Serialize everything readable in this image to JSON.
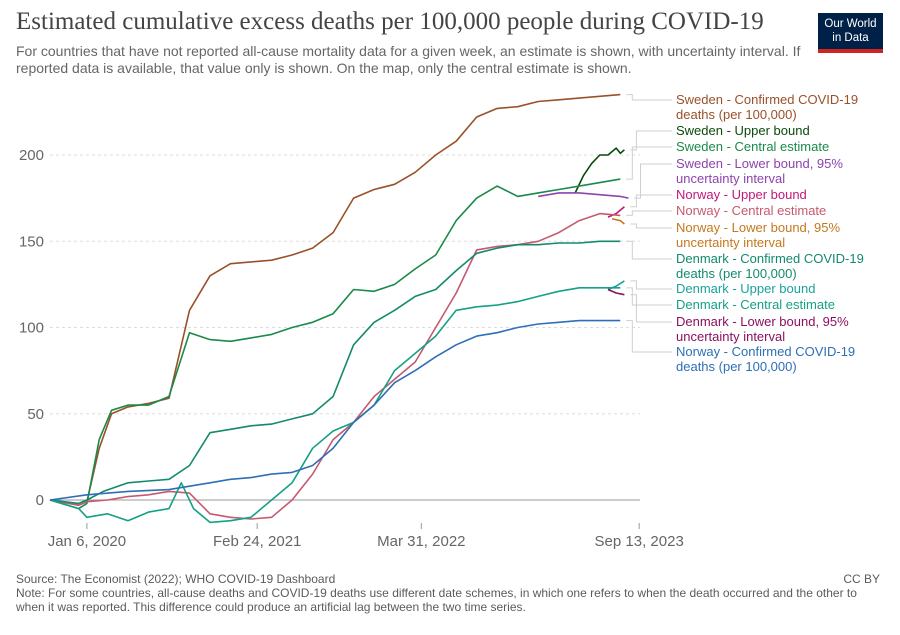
{
  "header": {
    "title": "Estimated cumulative excess deaths per 100,000 people during COVID-19",
    "subtitle": "For countries that have not reported all-cause mortality data for a given week, an estimate is shown, with uncertainty interval. If reported data is available, that value only is shown. On the map, only the central estimate is shown.",
    "logo_line1": "Our World",
    "logo_line2": "in Data"
  },
  "footer": {
    "source": "Source: The Economist (2022); WHO COVID-19 Dashboard",
    "note": "Note: For some countries, all-cause deaths and COVID-19 deaths use different date schemes, in which one refers to when the death occurred and the other to when it was reported. This difference could produce an artificial lag between the two time series.",
    "license": "CC BY"
  },
  "chart_data": {
    "type": "line",
    "title": "Estimated cumulative excess deaths per 100,000 people during COVID-19",
    "ylabel": "",
    "xlabel": "",
    "ylim": [
      -15,
      235
    ],
    "yticks": [
      0,
      50,
      100,
      150,
      200
    ],
    "x_range_days": [
      0,
      1348
    ],
    "xticks": [
      {
        "label": "Jan 6, 2020",
        "day": 0
      },
      {
        "label": "Feb 24, 2021",
        "day": 415
      },
      {
        "label": "Mar 31, 2022",
        "day": 815
      },
      {
        "label": "Sep 13, 2023",
        "day": 1346
      }
    ],
    "series": [
      {
        "name": "Sweden - Confirmed COVID-19 deaths (per 100,000)",
        "color": "#9a5129",
        "points": [
          [
            -90,
            0
          ],
          [
            -20,
            -3
          ],
          [
            0,
            -1
          ],
          [
            30,
            30
          ],
          [
            60,
            50
          ],
          [
            100,
            54
          ],
          [
            150,
            56
          ],
          [
            200,
            59
          ],
          [
            250,
            110
          ],
          [
            300,
            130
          ],
          [
            350,
            137
          ],
          [
            400,
            138
          ],
          [
            450,
            139
          ],
          [
            500,
            142
          ],
          [
            550,
            146
          ],
          [
            600,
            155
          ],
          [
            650,
            175
          ],
          [
            700,
            180
          ],
          [
            750,
            183
          ],
          [
            800,
            190
          ],
          [
            850,
            200
          ],
          [
            900,
            208
          ],
          [
            950,
            222
          ],
          [
            1000,
            227
          ],
          [
            1050,
            228
          ],
          [
            1100,
            231
          ],
          [
            1150,
            232
          ],
          [
            1200,
            233
          ],
          [
            1250,
            234
          ],
          [
            1300,
            235
          ]
        ]
      },
      {
        "name": "Sweden - Upper bound",
        "color": "#0a4a0a",
        "points": [
          [
            1190,
            178
          ],
          [
            1210,
            188
          ],
          [
            1230,
            195
          ],
          [
            1250,
            200
          ],
          [
            1270,
            200
          ],
          [
            1290,
            204
          ],
          [
            1300,
            201
          ],
          [
            1310,
            203
          ]
        ]
      },
      {
        "name": "Sweden - Central estimate",
        "color": "#1a8a4a",
        "points": [
          [
            -90,
            0
          ],
          [
            -20,
            -5
          ],
          [
            0,
            -2
          ],
          [
            30,
            35
          ],
          [
            60,
            52
          ],
          [
            100,
            55
          ],
          [
            150,
            55
          ],
          [
            200,
            60
          ],
          [
            250,
            97
          ],
          [
            300,
            93
          ],
          [
            350,
            92
          ],
          [
            400,
            94
          ],
          [
            450,
            96
          ],
          [
            500,
            100
          ],
          [
            550,
            103
          ],
          [
            600,
            108
          ],
          [
            650,
            122
          ],
          [
            700,
            121
          ],
          [
            750,
            125
          ],
          [
            800,
            134
          ],
          [
            850,
            142
          ],
          [
            900,
            162
          ],
          [
            950,
            175
          ],
          [
            1000,
            182
          ],
          [
            1050,
            176
          ],
          [
            1100,
            178
          ],
          [
            1150,
            180
          ],
          [
            1200,
            182
          ],
          [
            1250,
            184
          ],
          [
            1300,
            186
          ]
        ]
      },
      {
        "name": "Sweden - Lower bound, 95% uncertainty interval",
        "color": "#8e44ad",
        "points": [
          [
            1100,
            176
          ],
          [
            1150,
            178
          ],
          [
            1200,
            178
          ],
          [
            1250,
            177
          ],
          [
            1300,
            176
          ],
          [
            1320,
            175
          ]
        ]
      },
      {
        "name": "Norway - Upper bound",
        "color": "#c2177a",
        "points": [
          [
            1270,
            164
          ],
          [
            1290,
            166
          ],
          [
            1310,
            170
          ]
        ]
      },
      {
        "name": "Norway - Central estimate",
        "color": "#c55a6f",
        "points": [
          [
            -90,
            0
          ],
          [
            -20,
            -3
          ],
          [
            0,
            -1
          ],
          [
            50,
            0
          ],
          [
            100,
            2
          ],
          [
            150,
            3
          ],
          [
            200,
            5
          ],
          [
            250,
            4
          ],
          [
            300,
            -8
          ],
          [
            350,
            -10
          ],
          [
            400,
            -11
          ],
          [
            450,
            -10
          ],
          [
            500,
            0
          ],
          [
            550,
            15
          ],
          [
            600,
            35
          ],
          [
            650,
            45
          ],
          [
            700,
            60
          ],
          [
            750,
            70
          ],
          [
            800,
            80
          ],
          [
            850,
            100
          ],
          [
            900,
            120
          ],
          [
            950,
            145
          ],
          [
            1000,
            147
          ],
          [
            1050,
            148
          ],
          [
            1100,
            150
          ],
          [
            1150,
            155
          ],
          [
            1200,
            162
          ],
          [
            1250,
            166
          ],
          [
            1300,
            165
          ]
        ]
      },
      {
        "name": "Norway - Lower bound, 95% uncertainty interval",
        "color": "#c5781e",
        "points": [
          [
            1280,
            163
          ],
          [
            1300,
            162
          ],
          [
            1310,
            160
          ]
        ]
      },
      {
        "name": "Denmark - Confirmed COVID-19 deaths (per 100,000)",
        "color": "#138a6e",
        "points": [
          [
            -90,
            0
          ],
          [
            -20,
            -2
          ],
          [
            0,
            0
          ],
          [
            40,
            5
          ],
          [
            100,
            10
          ],
          [
            150,
            11
          ],
          [
            200,
            12
          ],
          [
            250,
            20
          ],
          [
            300,
            39
          ],
          [
            350,
            41
          ],
          [
            400,
            43
          ],
          [
            450,
            44
          ],
          [
            500,
            47
          ],
          [
            550,
            50
          ],
          [
            600,
            60
          ],
          [
            650,
            90
          ],
          [
            700,
            103
          ],
          [
            750,
            110
          ],
          [
            800,
            118
          ],
          [
            850,
            122
          ],
          [
            900,
            133
          ],
          [
            950,
            143
          ],
          [
            1000,
            146
          ],
          [
            1050,
            148
          ],
          [
            1100,
            148
          ],
          [
            1150,
            149
          ],
          [
            1200,
            149
          ],
          [
            1250,
            150
          ],
          [
            1300,
            150
          ]
        ]
      },
      {
        "name": "Denmark - Upper bound",
        "color": "#1aa39a",
        "points": [
          [
            1270,
            122
          ],
          [
            1290,
            124
          ],
          [
            1310,
            127
          ]
        ]
      },
      {
        "name": "Denmark - Central estimate",
        "color": "#16a085",
        "points": [
          [
            -90,
            0
          ],
          [
            -20,
            -5
          ],
          [
            0,
            -10
          ],
          [
            50,
            -8
          ],
          [
            100,
            -12
          ],
          [
            150,
            -7
          ],
          [
            200,
            -5
          ],
          [
            230,
            10
          ],
          [
            260,
            -5
          ],
          [
            300,
            -13
          ],
          [
            350,
            -12
          ],
          [
            400,
            -10
          ],
          [
            450,
            0
          ],
          [
            500,
            10
          ],
          [
            550,
            30
          ],
          [
            600,
            40
          ],
          [
            650,
            45
          ],
          [
            700,
            55
          ],
          [
            750,
            75
          ],
          [
            800,
            85
          ],
          [
            850,
            95
          ],
          [
            900,
            110
          ],
          [
            950,
            112
          ],
          [
            1000,
            113
          ],
          [
            1050,
            115
          ],
          [
            1100,
            118
          ],
          [
            1150,
            121
          ],
          [
            1200,
            123
          ],
          [
            1250,
            123
          ],
          [
            1300,
            123
          ]
        ]
      },
      {
        "name": "Denmark - Lower bound, 95% uncertainty interval",
        "color": "#8b1060",
        "points": [
          [
            1270,
            122
          ],
          [
            1290,
            120
          ],
          [
            1310,
            119
          ]
        ]
      },
      {
        "name": "Norway - Confirmed COVID-19 deaths (per 100,000)",
        "color": "#2e6fb5",
        "points": [
          [
            -90,
            0
          ],
          [
            0,
            3
          ],
          [
            100,
            5
          ],
          [
            200,
            6
          ],
          [
            300,
            10
          ],
          [
            350,
            12
          ],
          [
            400,
            13
          ],
          [
            450,
            15
          ],
          [
            500,
            16
          ],
          [
            550,
            20
          ],
          [
            600,
            30
          ],
          [
            650,
            45
          ],
          [
            700,
            55
          ],
          [
            750,
            68
          ],
          [
            800,
            75
          ],
          [
            850,
            83
          ],
          [
            900,
            90
          ],
          [
            950,
            95
          ],
          [
            1000,
            97
          ],
          [
            1050,
            100
          ],
          [
            1100,
            102
          ],
          [
            1150,
            103
          ],
          [
            1200,
            104
          ],
          [
            1250,
            104
          ],
          [
            1300,
            104
          ]
        ]
      }
    ],
    "legend": [
      {
        "line1": "Sweden - Confirmed COVID-19",
        "line2": "deaths (per 100,000)",
        "color": "#9a5129"
      },
      {
        "line1": "Sweden - Upper bound",
        "line2": "",
        "color": "#0a4a0a"
      },
      {
        "line1": "Sweden - Central estimate",
        "line2": "",
        "color": "#1a8a4a"
      },
      {
        "line1": "Sweden - Lower bound, 95%",
        "line2": "uncertainty interval",
        "color": "#8e44ad"
      },
      {
        "line1": "Norway - Upper bound",
        "line2": "",
        "color": "#c2177a"
      },
      {
        "line1": "Norway - Central estimate",
        "line2": "",
        "color": "#c55a6f"
      },
      {
        "line1": "Norway - Lower bound, 95%",
        "line2": "uncertainty interval",
        "color": "#c5781e"
      },
      {
        "line1": "Denmark - Confirmed COVID-19",
        "line2": "deaths (per 100,000)",
        "color": "#138a6e"
      },
      {
        "line1": "Denmark - Upper bound",
        "line2": "",
        "color": "#1aa39a"
      },
      {
        "line1": "Denmark - Central estimate",
        "line2": "",
        "color": "#16a085"
      },
      {
        "line1": "Denmark - Lower bound, 95%",
        "line2": "uncertainty interval",
        "color": "#8b1060"
      },
      {
        "line1": "Norway - Confirmed COVID-19",
        "line2": "deaths (per 100,000)",
        "color": "#2e6fb5"
      }
    ]
  }
}
